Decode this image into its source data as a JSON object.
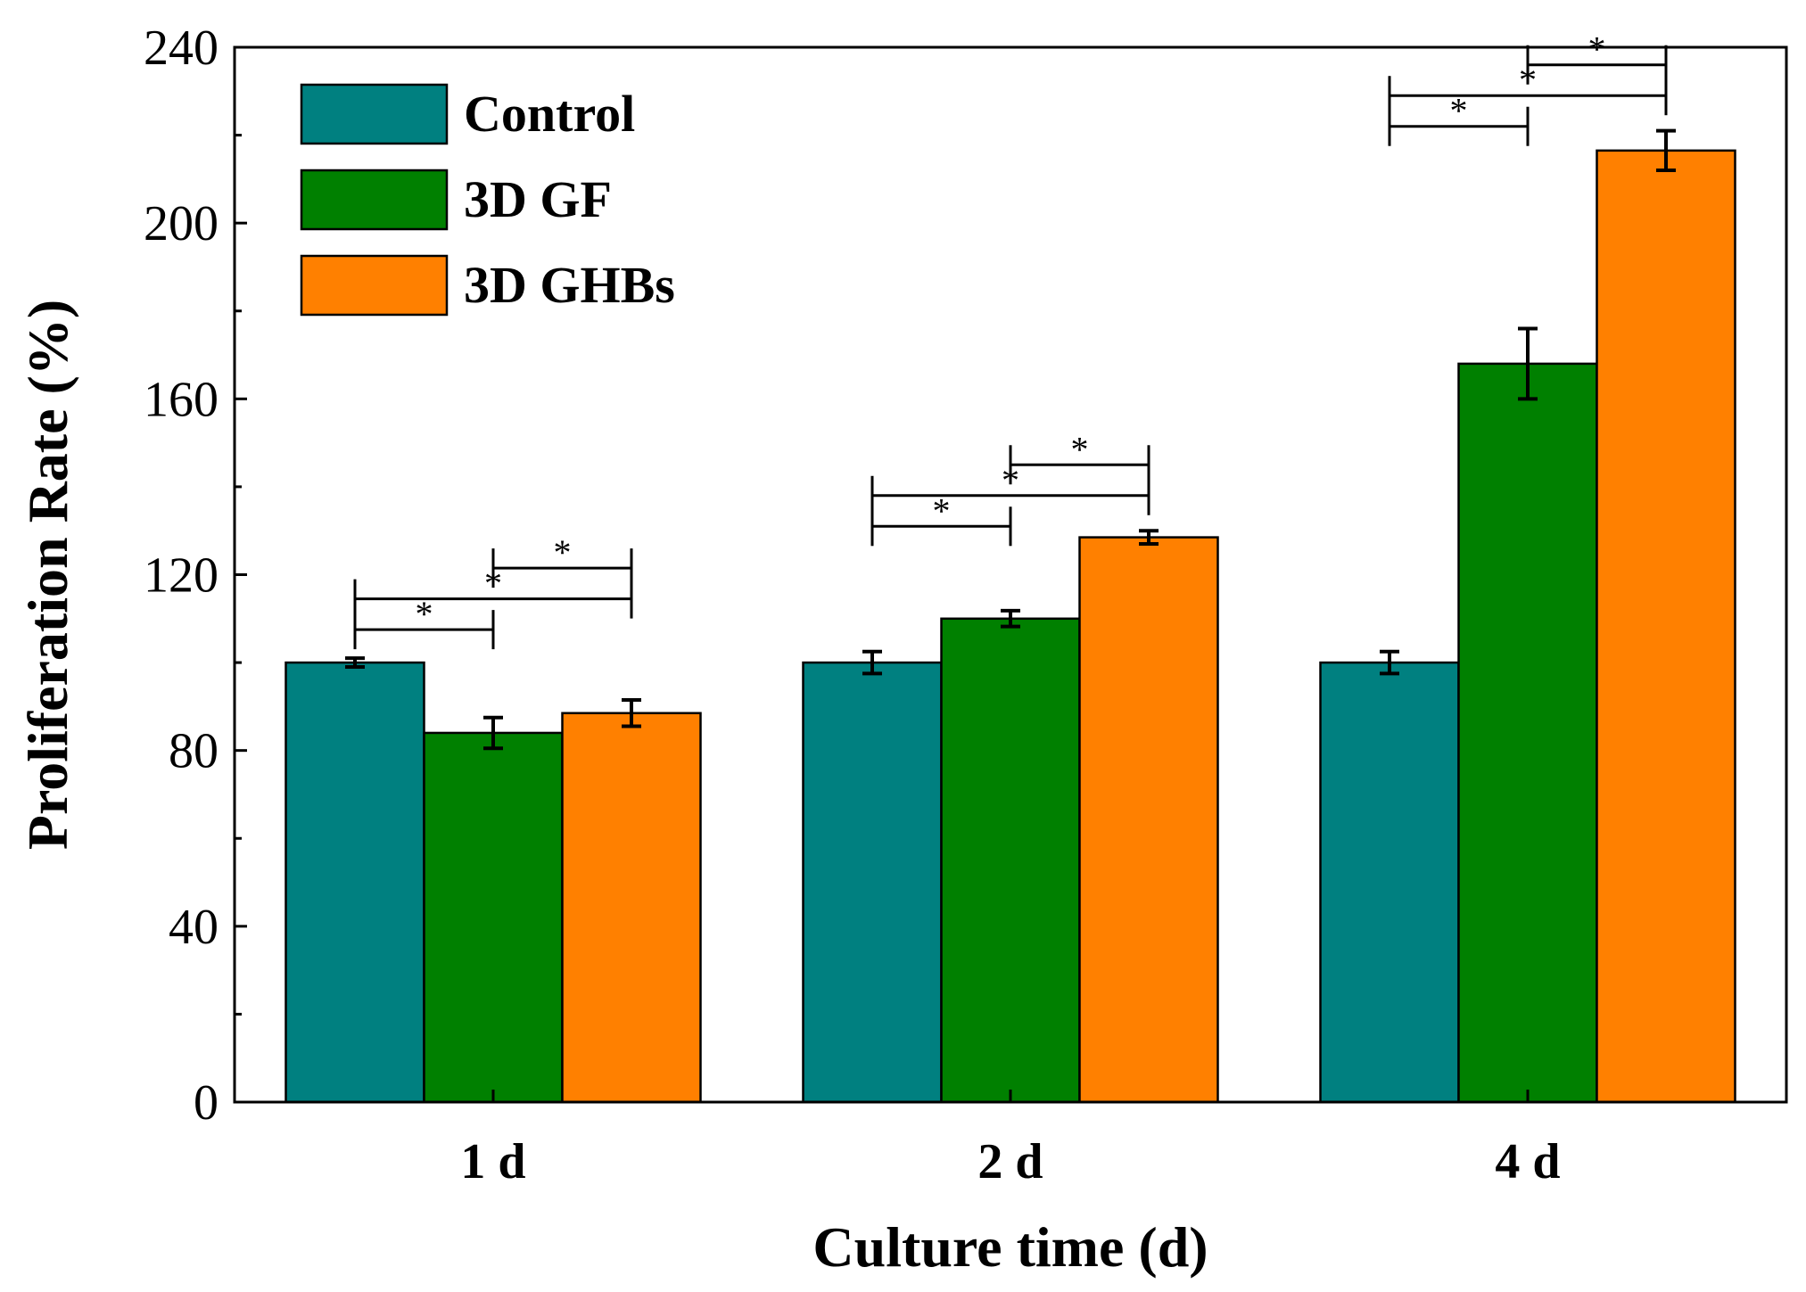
{
  "chart_data": {
    "type": "bar",
    "title": "",
    "xlabel": "Culture time (d)",
    "ylabel": "Proliferation Rate (%)",
    "ylim": [
      0,
      240
    ],
    "y_ticks": [
      0,
      40,
      80,
      120,
      160,
      200,
      240
    ],
    "y_tick_labels": [
      "0",
      "40",
      "80",
      "120",
      "160",
      "200",
      "240"
    ],
    "categories": [
      "1 d",
      "2 d",
      "4 d"
    ],
    "legend_position": "top-left",
    "series": [
      {
        "name": "Control",
        "color": "#008080",
        "values": [
          100,
          100,
          100
        ],
        "errors": [
          1,
          2.5,
          2.5
        ]
      },
      {
        "name": "3D GF",
        "color": "#008000",
        "values": [
          84,
          110,
          168
        ],
        "errors": [
          3.5,
          1.8,
          8
        ]
      },
      {
        "name": "3D GHBs",
        "color": "#FF8000",
        "values": [
          88.5,
          128.5,
          216.5
        ],
        "errors": [
          3,
          1.5,
          4.5
        ]
      }
    ],
    "significance": [
      {
        "category": 0,
        "from": 0,
        "to": 1,
        "label": "*",
        "y": 107.5
      },
      {
        "category": 0,
        "from": 0,
        "to": 2,
        "label": "*",
        "y": 114.5
      },
      {
        "category": 0,
        "from": 1,
        "to": 2,
        "label": "*",
        "y": 121.5
      },
      {
        "category": 1,
        "from": 0,
        "to": 1,
        "label": "*",
        "y": 131
      },
      {
        "category": 1,
        "from": 0,
        "to": 2,
        "label": "*",
        "y": 138
      },
      {
        "category": 1,
        "from": 1,
        "to": 2,
        "label": "*",
        "y": 145
      },
      {
        "category": 2,
        "from": 0,
        "to": 1,
        "label": "*",
        "y": 222
      },
      {
        "category": 2,
        "from": 0,
        "to": 2,
        "label": "*",
        "y": 229
      },
      {
        "category": 2,
        "from": 1,
        "to": 2,
        "label": "*",
        "y": 236
      }
    ]
  }
}
